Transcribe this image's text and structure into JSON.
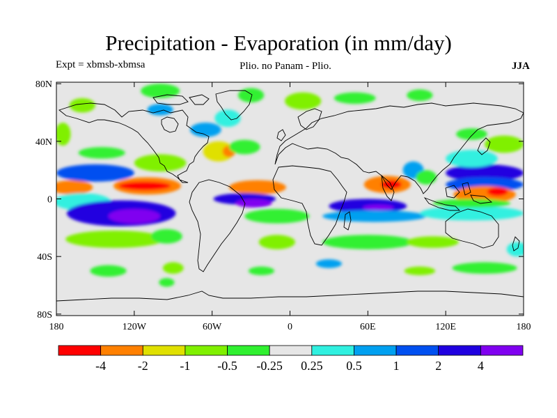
{
  "title": "Precipitation - Evaporation (in mm/day)",
  "experiment_label": "Expt = xbmsb-xbmsa",
  "subtitle": "Plio. no Panam - Plio.",
  "season": "JJA",
  "colors": {
    "background": "#e6e6e6",
    "coast": "#000000"
  },
  "y_ticks": [
    {
      "lat": 80,
      "label": "80N"
    },
    {
      "lat": 40,
      "label": "40N"
    },
    {
      "lat": 0,
      "label": "0"
    },
    {
      "lat": -40,
      "label": "40S"
    },
    {
      "lat": -80,
      "label": "80S"
    }
  ],
  "x_ticks": [
    {
      "lon": -180,
      "label": "180"
    },
    {
      "lon": -120,
      "label": "120W"
    },
    {
      "lon": -60,
      "label": "60W"
    },
    {
      "lon": 0,
      "label": "0"
    },
    {
      "lon": 60,
      "label": "60E"
    },
    {
      "lon": 120,
      "label": "120E"
    },
    {
      "lon": 180,
      "label": "180"
    }
  ],
  "colorbar": {
    "colors": [
      "#ff0000",
      "#ff8000",
      "#e0e000",
      "#80f000",
      "#30f030",
      "#e6e6e6",
      "#30f0e0",
      "#00a0f0",
      "#0050f0",
      "#2000e0",
      "#8000f0"
    ],
    "labels": [
      "-4",
      "-2",
      "-1",
      "-0.5",
      "-0.25",
      "0.25",
      "0.5",
      "1",
      "2",
      "4"
    ]
  },
  "fields": [
    {
      "lon": -168,
      "lat": 8,
      "rx": 16,
      "ry": 5,
      "c": "#ff8000"
    },
    {
      "lon": -110,
      "lat": 9,
      "rx": 26,
      "ry": 6,
      "c": "#ff8000"
    },
    {
      "lon": -112,
      "lat": 9,
      "rx": 20,
      "ry": 3,
      "c": "#ff0000"
    },
    {
      "lon": -150,
      "lat": 18,
      "rx": 30,
      "ry": 6,
      "c": "#0050f0"
    },
    {
      "lon": -160,
      "lat": -2,
      "rx": 22,
      "ry": 6,
      "c": "#30f0e0"
    },
    {
      "lon": -130,
      "lat": -10,
      "rx": 42,
      "ry": 9,
      "c": "#2000e0"
    },
    {
      "lon": -120,
      "lat": -12,
      "rx": 20,
      "ry": 5,
      "c": "#8000f0"
    },
    {
      "lon": -135,
      "lat": -28,
      "rx": 38,
      "ry": 6,
      "c": "#80f000"
    },
    {
      "lon": -95,
      "lat": -26,
      "rx": 12,
      "ry": 5,
      "c": "#30f030"
    },
    {
      "lon": -100,
      "lat": 25,
      "rx": 20,
      "ry": 6,
      "c": "#80f000"
    },
    {
      "lon": -145,
      "lat": 32,
      "rx": 18,
      "ry": 4,
      "c": "#30f030"
    },
    {
      "lon": -175,
      "lat": 45,
      "rx": 6,
      "ry": 8,
      "c": "#80f000"
    },
    {
      "lon": -55,
      "lat": 33,
      "rx": 12,
      "ry": 7,
      "c": "#e0e000"
    },
    {
      "lon": -47,
      "lat": 33,
      "rx": 5,
      "ry": 4,
      "c": "#ff8000"
    },
    {
      "lon": -35,
      "lat": 36,
      "rx": 12,
      "ry": 5,
      "c": "#30f030"
    },
    {
      "lon": -65,
      "lat": 48,
      "rx": 12,
      "ry": 5,
      "c": "#00a0f0"
    },
    {
      "lon": -48,
      "lat": 56,
      "rx": 10,
      "ry": 6,
      "c": "#30f0e0"
    },
    {
      "lon": -25,
      "lat": 8,
      "rx": 22,
      "ry": 5,
      "c": "#ff8000"
    },
    {
      "lon": -35,
      "lat": 0,
      "rx": 24,
      "ry": 4,
      "c": "#2000e0"
    },
    {
      "lon": -28,
      "lat": -3,
      "rx": 14,
      "ry": 3,
      "c": "#8000f0"
    },
    {
      "lon": -10,
      "lat": -12,
      "rx": 25,
      "ry": 5,
      "c": "#30f030"
    },
    {
      "lon": -10,
      "lat": -30,
      "rx": 14,
      "ry": 5,
      "c": "#80f000"
    },
    {
      "lon": -22,
      "lat": -50,
      "rx": 10,
      "ry": 3,
      "c": "#30f030"
    },
    {
      "lon": -140,
      "lat": -50,
      "rx": 14,
      "ry": 4,
      "c": "#30f030"
    },
    {
      "lon": -90,
      "lat": -48,
      "rx": 8,
      "ry": 4,
      "c": "#80f000"
    },
    {
      "lon": -95,
      "lat": -58,
      "rx": 6,
      "ry": 3,
      "c": "#30f030"
    },
    {
      "lon": 75,
      "lat": 10,
      "rx": 18,
      "ry": 6,
      "c": "#ff8000"
    },
    {
      "lon": 78,
      "lat": 10,
      "rx": 8,
      "ry": 3,
      "c": "#ff0000"
    },
    {
      "lon": 95,
      "lat": 20,
      "rx": 8,
      "ry": 6,
      "c": "#00a0f0"
    },
    {
      "lon": 105,
      "lat": 15,
      "rx": 8,
      "ry": 5,
      "c": "#30f030"
    },
    {
      "lon": 150,
      "lat": 18,
      "rx": 30,
      "ry": 6,
      "c": "#2000e0"
    },
    {
      "lon": 150,
      "lat": 10,
      "rx": 30,
      "ry": 5,
      "c": "#0050f0"
    },
    {
      "lon": 150,
      "lat": 3,
      "rx": 24,
      "ry": 6,
      "c": "#ff8000"
    },
    {
      "lon": 160,
      "lat": 5,
      "rx": 8,
      "ry": 3,
      "c": "#ff0000"
    },
    {
      "lon": 140,
      "lat": 28,
      "rx": 20,
      "ry": 6,
      "c": "#30f0e0"
    },
    {
      "lon": 165,
      "lat": 38,
      "rx": 15,
      "ry": 6,
      "c": "#80f000"
    },
    {
      "lon": 140,
      "lat": 45,
      "rx": 12,
      "ry": 4,
      "c": "#30f030"
    },
    {
      "lon": 60,
      "lat": -5,
      "rx": 30,
      "ry": 5,
      "c": "#2000e0"
    },
    {
      "lon": 68,
      "lat": -6,
      "rx": 12,
      "ry": 2,
      "c": "#8000f0"
    },
    {
      "lon": 65,
      "lat": -12,
      "rx": 40,
      "ry": 4,
      "c": "#00a0f0"
    },
    {
      "lon": 140,
      "lat": -10,
      "rx": 40,
      "ry": 5,
      "c": "#30f0e0"
    },
    {
      "lon": 140,
      "lat": -3,
      "rx": 30,
      "ry": 3,
      "c": "#30f030"
    },
    {
      "lon": 60,
      "lat": -30,
      "rx": 35,
      "ry": 5,
      "c": "#30f030"
    },
    {
      "lon": 110,
      "lat": -30,
      "rx": 20,
      "ry": 4,
      "c": "#80f000"
    },
    {
      "lon": 150,
      "lat": -48,
      "rx": 25,
      "ry": 4,
      "c": "#30f030"
    },
    {
      "lon": 100,
      "lat": -50,
      "rx": 12,
      "ry": 3,
      "c": "#80f000"
    },
    {
      "lon": 175,
      "lat": -35,
      "rx": 8,
      "ry": 5,
      "c": "#30f0e0"
    },
    {
      "lon": 30,
      "lat": -45,
      "rx": 10,
      "ry": 3,
      "c": "#00a0f0"
    },
    {
      "lon": 10,
      "lat": 68,
      "rx": 14,
      "ry": 6,
      "c": "#80f000"
    },
    {
      "lon": 50,
      "lat": 70,
      "rx": 16,
      "ry": 4,
      "c": "#30f030"
    },
    {
      "lon": 100,
      "lat": 72,
      "rx": 10,
      "ry": 4,
      "c": "#30f030"
    },
    {
      "lon": -100,
      "lat": 75,
      "rx": 15,
      "ry": 5,
      "c": "#30f030"
    },
    {
      "lon": -30,
      "lat": 72,
      "rx": 10,
      "ry": 5,
      "c": "#30f030"
    },
    {
      "lon": -160,
      "lat": 65,
      "rx": 10,
      "ry": 5,
      "c": "#80f000"
    },
    {
      "lon": -100,
      "lat": 62,
      "rx": 10,
      "ry": 4,
      "c": "#00a0f0"
    }
  ]
}
